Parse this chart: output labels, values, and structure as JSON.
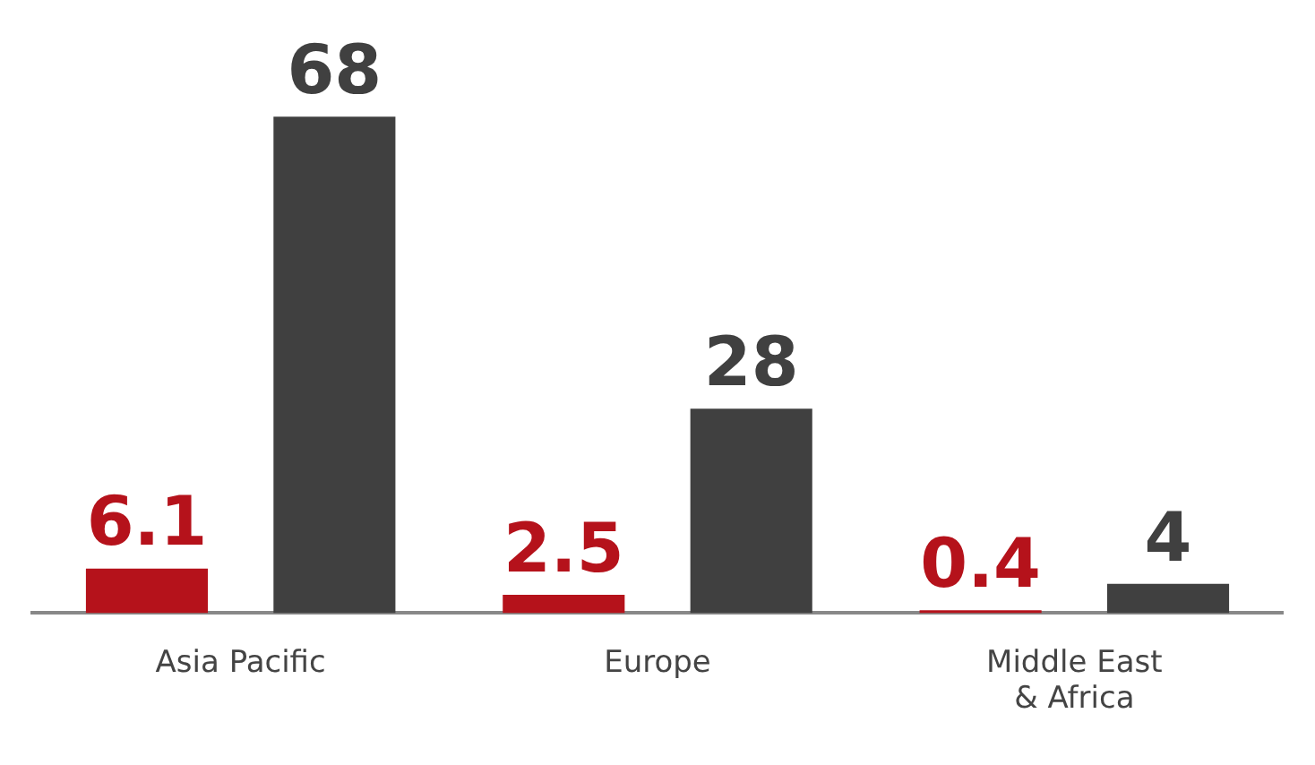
{
  "chart_data": {
    "type": "bar",
    "categories": [
      "Asia Pacific",
      "Europe",
      "Middle East & Africa"
    ],
    "series": [
      {
        "color": "#b5121b",
        "values": [
          6.1,
          2.5,
          0.4
        ]
      },
      {
        "color": "#404040",
        "values": [
          68,
          28,
          4
        ]
      }
    ],
    "data_labels": true,
    "tick_labels": "x",
    "grid": false
  }
}
